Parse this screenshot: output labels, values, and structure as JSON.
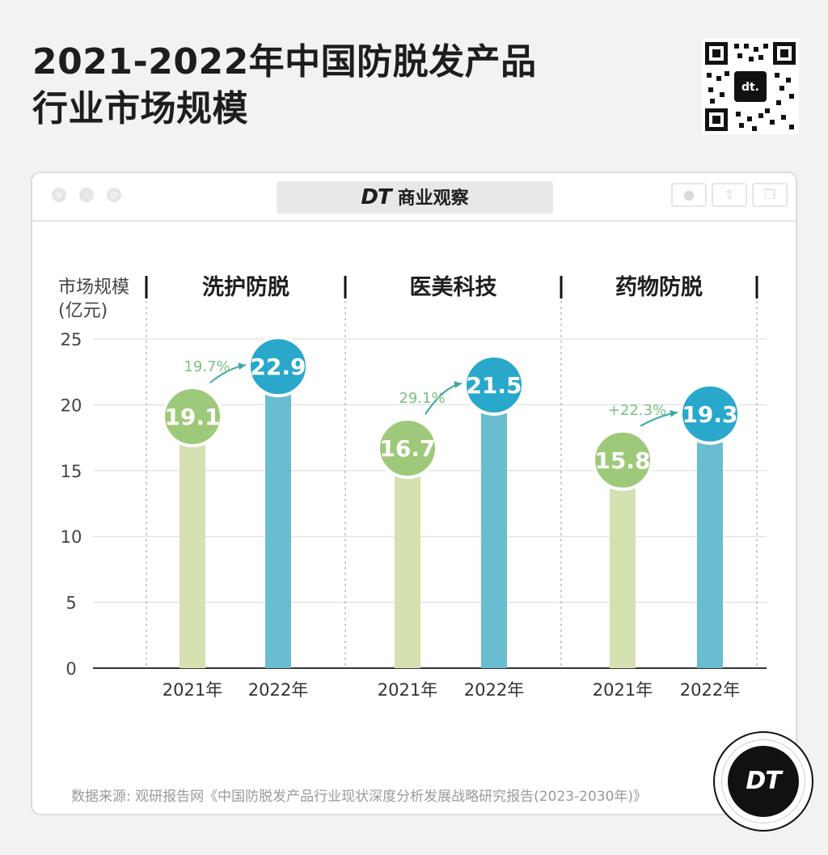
{
  "header": {
    "title_line1": "2021-2022年中国防脱发产品",
    "title_line2": "行业市场规模"
  },
  "window": {
    "brand_logo": "DT",
    "brand_name": "商业观察"
  },
  "badge": {
    "label": "DT"
  },
  "source": "数据来源: 观研报告网《中国防脱发产品行业现状深度分析发展战略研究报告(2023-2030年)》",
  "colors": {
    "y2021_bar": "#d5e1b0",
    "y2021_circle": "#9ec97a",
    "y2022_bar": "#6abdd1",
    "y2022_circle": "#29a8cc",
    "growth_text": "#7bbf82"
  },
  "chart_data": {
    "type": "bar",
    "ylabel_line1": "市场规模",
    "ylabel_line2": "(亿元)",
    "ylim": [
      0,
      25
    ],
    "yticks": [
      0,
      5,
      10,
      15,
      20,
      25
    ],
    "grid": true,
    "groups": [
      {
        "name": "洗护防脱",
        "categories": [
          "2021年",
          "2022年"
        ],
        "values": [
          19.1,
          22.9
        ],
        "value_labels": [
          "19.1",
          "22.9"
        ],
        "growth": "19.7%"
      },
      {
        "name": "医美科技",
        "categories": [
          "2021年",
          "2022年"
        ],
        "values": [
          16.7,
          21.5
        ],
        "value_labels": [
          "16.7",
          "21.5"
        ],
        "growth": "29.1%"
      },
      {
        "name": "药物防脱",
        "categories": [
          "2021年",
          "2022年"
        ],
        "values": [
          15.8,
          19.3
        ],
        "value_labels": [
          "15.8",
          "19.3"
        ],
        "growth": "+22.3%"
      }
    ]
  }
}
